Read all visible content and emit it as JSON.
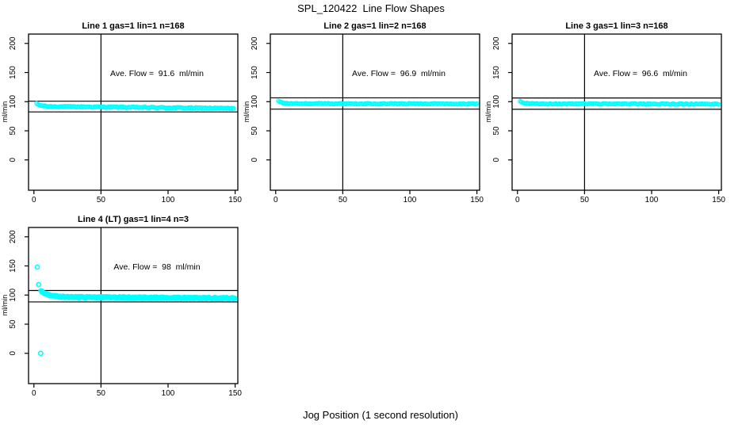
{
  "figure": {
    "title": "SPL_120422  Line Flow Shapes",
    "x_label": "Jog Position (1 second resolution)",
    "background": "#ffffff",
    "marker_color": "#00ffff",
    "axis_color": "#000000"
  },
  "chart_data": [
    {
      "type": "scatter",
      "title": "Line 1 gas=1 lin=1 n=168",
      "annotation": "Ave. Flow =  91.6  ml/min",
      "ave_flow_ml_min": 91.6,
      "n_jogs": 168,
      "ylabel": "ml/min",
      "x_ticks": [
        0,
        50,
        100,
        150
      ],
      "y_ticks": [
        0,
        50,
        100,
        150,
        200
      ],
      "xlim": [
        -4,
        152
      ],
      "ylim": [
        -52,
        216
      ],
      "vline_x": 50,
      "ref_lines_y": [
        100.8,
        82.4
      ],
      "marker": "open-circle",
      "band": {
        "x_start": 2,
        "x_end": 149,
        "y_peak": 96.5,
        "y_flat_start": 92.0,
        "y_flat_end": 88.5,
        "decay_tau": 3,
        "jitter": 0.9,
        "n_points": 168
      },
      "outlier_points": []
    },
    {
      "type": "scatter",
      "title": "Line 2 gas=1 lin=2 n=168",
      "annotation": "Ave. Flow =  96.9  ml/min",
      "ave_flow_ml_min": 96.9,
      "n_jogs": 168,
      "ylabel": "ml/min",
      "x_ticks": [
        0,
        50,
        100,
        150
      ],
      "y_ticks": [
        0,
        50,
        100,
        150,
        200
      ],
      "xlim": [
        -4,
        152
      ],
      "ylim": [
        -52,
        216
      ],
      "vline_x": 50,
      "ref_lines_y": [
        106.6,
        87.2
      ],
      "marker": "open-circle",
      "band": {
        "x_start": 2,
        "x_end": 150,
        "y_peak": 101.0,
        "y_flat_start": 96.8,
        "y_flat_end": 96.2,
        "decay_tau": 2.5,
        "jitter": 0.8,
        "n_points": 168
      },
      "outlier_points": []
    },
    {
      "type": "scatter",
      "title": "Line 3 gas=1 lin=3 n=168",
      "annotation": "Ave. Flow =  96.6  ml/min",
      "ave_flow_ml_min": 96.6,
      "n_jogs": 168,
      "ylabel": "ml/min",
      "x_ticks": [
        0,
        50,
        100,
        150
      ],
      "y_ticks": [
        0,
        50,
        100,
        150,
        200
      ],
      "xlim": [
        -4,
        152
      ],
      "ylim": [
        -52,
        216
      ],
      "vline_x": 50,
      "ref_lines_y": [
        106.3,
        86.9
      ],
      "marker": "open-circle",
      "band": {
        "x_start": 2,
        "x_end": 150,
        "y_peak": 100.5,
        "y_flat_start": 96.5,
        "y_flat_end": 95.9,
        "decay_tau": 2.5,
        "jitter": 0.8,
        "n_points": 168
      },
      "outlier_points": []
    },
    {
      "type": "scatter",
      "title": "Line 4 (LT) gas=1 lin=4 n=3",
      "annotation": "Ave. Flow =  98  ml/min",
      "ave_flow_ml_min": 98,
      "n_jogs": 3,
      "ylabel": "ml/min",
      "x_ticks": [
        0,
        50,
        100,
        150
      ],
      "y_ticks": [
        0,
        50,
        100,
        150,
        200
      ],
      "xlim": [
        -4,
        152
      ],
      "ylim": [
        -52,
        216
      ],
      "vline_x": 50,
      "ref_lines_y": [
        107.8,
        88.2
      ],
      "marker": "open-circle",
      "band": {
        "x_start": 5,
        "x_end": 150,
        "y_peak": 108.0,
        "y_flat_start": 97.0,
        "y_flat_end": 94.5,
        "decay_tau": 5,
        "jitter": 1.8,
        "n_points": 500
      },
      "outlier_points": [
        [
          2.5,
          148
        ],
        [
          3.5,
          118
        ],
        [
          5,
          0
        ]
      ]
    }
  ]
}
